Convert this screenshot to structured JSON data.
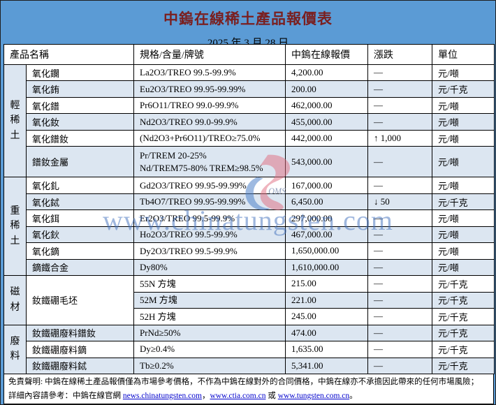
{
  "title": "中鎢在線稀土產品報價表",
  "date": "2025 年 3 月 28 日",
  "colors": {
    "sheet_background": "#5b9bd5",
    "band_row": "#dce6f1",
    "title_text": "#7a1f1f",
    "link_text": "#0000cc",
    "watermark": "#3e6ebc"
  },
  "table": {
    "headers": {
      "product": "產品名稱",
      "spec": "規格/含量/牌號",
      "price": "中鎢在線報價",
      "change": "漲跌",
      "unit": "單位"
    },
    "rows": [
      {
        "group": "輕稀土",
        "group_rowspan": 6,
        "name": "氧化鑭",
        "spec": [
          "La2O3/TREO 99.5-99.9%"
        ],
        "price": "4,200.00",
        "change": "—",
        "unit": "元/噸"
      },
      {
        "name": "氧化銪",
        "spec": [
          "Eu2O3/TREO 99.95-99.99%"
        ],
        "price": "200.00",
        "change": "—",
        "unit": "元/千克"
      },
      {
        "name": "氧化鐠",
        "spec": [
          "Pr6O11/TREO 99.0-99.9%"
        ],
        "price": "462,000.00",
        "change": "—",
        "unit": "元/噸"
      },
      {
        "name": "氧化釹",
        "spec": [
          "Nd2O3/TREO 99.0-99.9%"
        ],
        "price": "455,000.00",
        "change": "—",
        "unit": "元/噸"
      },
      {
        "name": "氧化鐠釹",
        "spec": [
          "(Nd2O3+Pr6O11)/TREO≥75.0%"
        ],
        "price": "442,000.00",
        "change": "↑ 1,000",
        "unit": "元/噸"
      },
      {
        "name": "鐠釹金屬",
        "tall": true,
        "spec": [
          "Pr/TREM 20-25%",
          "Nd/TREM75-80% TREM≥98.5%"
        ],
        "price": "543,000.00",
        "change": "—",
        "unit": "元/噸"
      },
      {
        "group": "重稀土",
        "group_rowspan": 6,
        "name": "氧化釓",
        "spec": [
          "Gd2O3/TREO 99.95-99.99%"
        ],
        "price": "167,000.00",
        "change": "—",
        "unit": "元/噸"
      },
      {
        "name": "氧化鋱",
        "spec": [
          "Tb4O7/TREO 99.95-99.99%"
        ],
        "price": "6,450.00",
        "change": "↓ 50",
        "unit": "元/千克"
      },
      {
        "name": "氧化鉺",
        "spec": [
          "Er2O3/TREO 99.5-99.9%"
        ],
        "price": "297,000.00",
        "change": "—",
        "unit": "元/噸"
      },
      {
        "name": "氧化鈥",
        "spec": [
          "Ho2O3/TREO 99.5-99.9%"
        ],
        "price": "467,000.00",
        "change": "—",
        "unit": "元/噸"
      },
      {
        "name": "氧化鏑",
        "spec": [
          "Dy2O3/TREO 99.5-99.9%"
        ],
        "price": "1,650,000.00",
        "change": "—",
        "unit": "元/噸"
      },
      {
        "name": "鏑鐵合金",
        "spec": [
          "Dy80%"
        ],
        "price": "1,610,000.00",
        "change": "—",
        "unit": "元/噸"
      },
      {
        "group": "磁材",
        "group_rowspan": 3,
        "name": "釹鐵硼毛坯",
        "name_rowspan": 3,
        "spec": [
          "55N 方塊"
        ],
        "price": "215.00",
        "change": "—",
        "unit": "元/千克"
      },
      {
        "spec": [
          "52M 方塊"
        ],
        "price": "221.00",
        "change": "—",
        "unit": "元/千克"
      },
      {
        "spec": [
          "52H 方塊"
        ],
        "price": "245.00",
        "change": "—",
        "unit": "元/千克"
      },
      {
        "group": "廢料",
        "group_rowspan": 3,
        "name": "釹鐵硼廢料鐠釹",
        "spec": [
          "PrNd≥50%"
        ],
        "price": "474.00",
        "change": "—",
        "unit": "元/千克"
      },
      {
        "name": "釹鐵硼廢料鏑",
        "spec": [
          "Dy≥0.4%"
        ],
        "price": "1,635.00",
        "change": "—",
        "unit": "元/千克"
      },
      {
        "name": "釹鐵硼廢料鋱",
        "spec": [
          "Tb≥0.2%"
        ],
        "price": "5,341.00",
        "change": "—",
        "unit": "元/千克"
      }
    ]
  },
  "watermark": {
    "text": "www.chinatungsten.com",
    "logo_caption": "OMS"
  },
  "footer": {
    "line1": "免責聲明: 中鎢在線稀土產品報價僅為市場參考價格，不作為中鎢在線對外的合同價格，中鎢在線亦不承擔因此帶來的任何市場風險；",
    "line2_prefix": "詳細內容請參考：中鎢在線官網 ",
    "links": [
      "news.chinatungsten.com",
      "www.ctia.com.cn",
      "www.tungsten.com.cn"
    ],
    "sep1": "，",
    "sep2": " 或 ",
    "end": "。"
  }
}
